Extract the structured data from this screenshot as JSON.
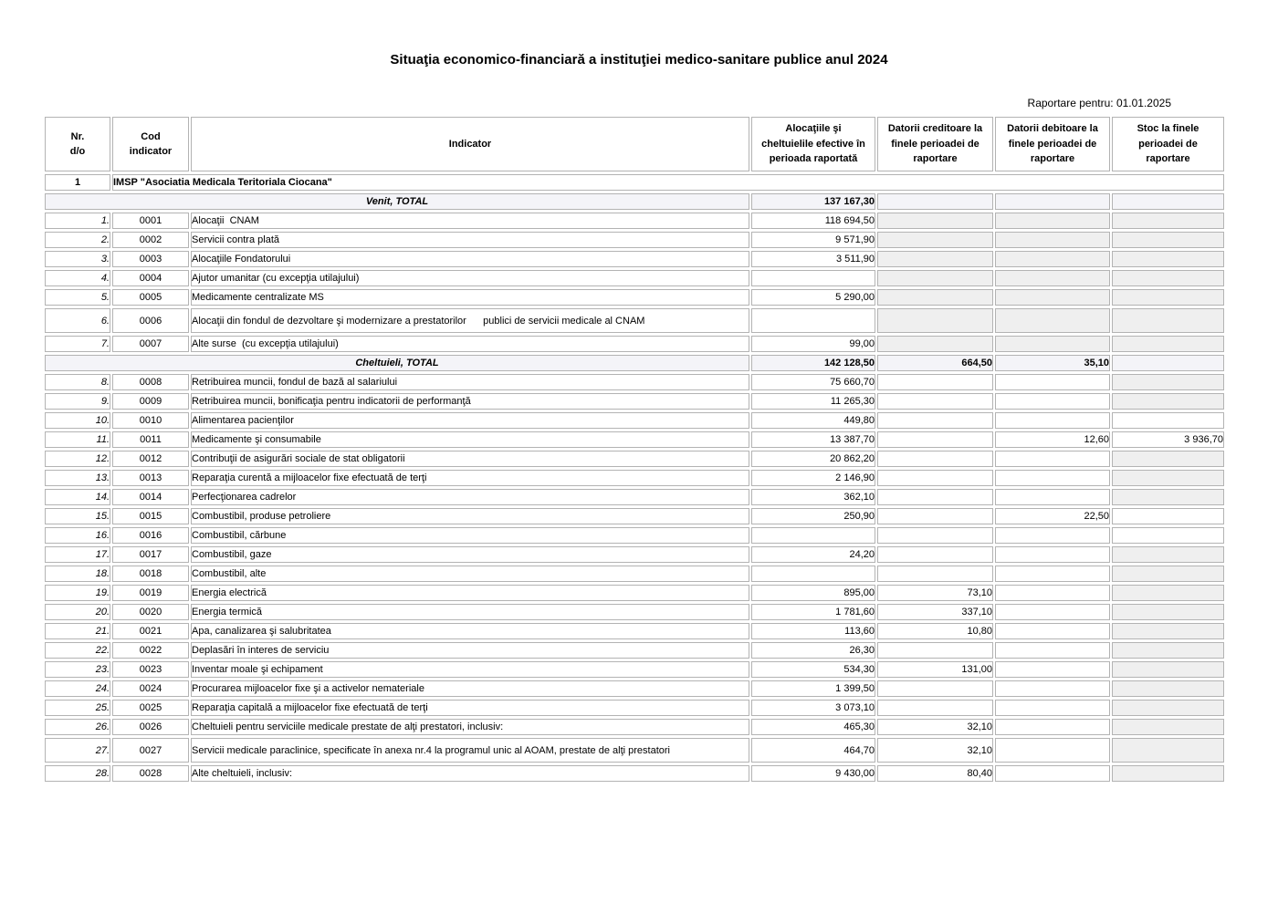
{
  "page": {
    "title": "Situaţia economico-financiară a instituţiei medico-sanitare publice anul 2024",
    "report_label": "Raportare pentru:",
    "report_date": "01.01.2025"
  },
  "colors": {
    "page_bg": "#ffffff",
    "text": "#000000",
    "grid_border": "#b3b3b3",
    "disabled_cell_bg": "#efefef",
    "total_row_bg": "#f4f4f8"
  },
  "table": {
    "columns": [
      {
        "key": "nr",
        "label": "Nr.\nd/o"
      },
      {
        "key": "code",
        "label": "Cod\nindicator"
      },
      {
        "key": "indicator",
        "label": "Indicator"
      },
      {
        "key": "alloc",
        "label": "Alocaţiile şi\ncheltuielile efective în\nperioada raportată"
      },
      {
        "key": "cred",
        "label": "Datorii creditoare la\nfinele perioadei de\nraportare"
      },
      {
        "key": "deb",
        "label": "Datorii debitoare la\nfinele perioadei de\nraportare"
      },
      {
        "key": "stoc",
        "label": "Stoc la finele\nperioadei de\nraportare"
      }
    ],
    "rows": [
      {
        "type": "section",
        "nr": "1",
        "label": "IMSP \"Asociatia Medicala Teritoriala Ciocana\""
      },
      {
        "type": "total",
        "label": "Venit, TOTAL",
        "alloc": "137 167,30",
        "cred": "",
        "deb": "",
        "stoc": ""
      },
      {
        "type": "item",
        "nr": "1.",
        "code": "0001",
        "indicator": "Alocaţii  CNAM",
        "alloc": "118 694,50",
        "cred": "",
        "deb": "",
        "stoc": "",
        "gray": [
          "cred",
          "deb",
          "stoc"
        ]
      },
      {
        "type": "item",
        "nr": "2.",
        "code": "0002",
        "indicator": "Servicii contra plată",
        "alloc": "9 571,90",
        "cred": "",
        "deb": "",
        "stoc": "",
        "gray": [
          "cred",
          "deb",
          "stoc"
        ]
      },
      {
        "type": "item",
        "nr": "3.",
        "code": "0003",
        "indicator": "Alocaţiile Fondatorului",
        "alloc": "3 511,90",
        "cred": "",
        "deb": "",
        "stoc": "",
        "gray": [
          "cred",
          "deb",
          "stoc"
        ]
      },
      {
        "type": "item",
        "nr": "4.",
        "code": "0004",
        "indicator": "Ajutor umanitar (cu excepţia utilajului)",
        "alloc": "",
        "cred": "",
        "deb": "",
        "stoc": "",
        "gray": [
          "cred",
          "deb",
          "stoc"
        ]
      },
      {
        "type": "item",
        "nr": "5.",
        "code": "0005",
        "indicator": "Medicamente centralizate MS",
        "alloc": "5 290,00",
        "cred": "",
        "deb": "",
        "stoc": "",
        "gray": [
          "cred",
          "deb",
          "stoc"
        ]
      },
      {
        "type": "item",
        "nr": "6.",
        "code": "0006",
        "indicator": "Alocaţii din fondul de dezvoltare şi modernizare a prestatorilor      publici de servicii medicale al CNAM",
        "alloc": "",
        "cred": "",
        "deb": "",
        "stoc": "",
        "gray": [
          "cred",
          "deb",
          "stoc"
        ],
        "tall": true
      },
      {
        "type": "item",
        "nr": "7.",
        "code": "0007",
        "indicator": "Alte surse  (cu excepţia utilajului)",
        "alloc": "99,00",
        "cred": "",
        "deb": "",
        "stoc": "",
        "gray": [
          "cred",
          "deb",
          "stoc"
        ]
      },
      {
        "type": "total",
        "label": "Cheltuieli, TOTAL",
        "alloc": "142 128,50",
        "cred": "664,50",
        "deb": "35,10",
        "stoc": ""
      },
      {
        "type": "item",
        "nr": "8.",
        "code": "0008",
        "indicator": "Retribuirea muncii, fondul de bază al salariului",
        "alloc": "75 660,70",
        "cred": "",
        "deb": "",
        "stoc": "",
        "gray": [
          "stoc"
        ]
      },
      {
        "type": "item",
        "nr": "9.",
        "code": "0009",
        "indicator": "Retribuirea muncii, bonificaţia pentru indicatorii de performanţă",
        "alloc": "11 265,30",
        "cred": "",
        "deb": "",
        "stoc": "",
        "gray": [
          "stoc"
        ]
      },
      {
        "type": "item",
        "nr": "10.",
        "code": "0010",
        "indicator": "Alimentarea pacienţilor",
        "alloc": "449,80",
        "cred": "",
        "deb": "",
        "stoc": "",
        "gray": []
      },
      {
        "type": "item",
        "nr": "11.",
        "code": "0011",
        "indicator": "Medicamente şi consumabile",
        "alloc": "13 387,70",
        "cred": "",
        "deb": "12,60",
        "stoc": "3 936,70",
        "gray": []
      },
      {
        "type": "item",
        "nr": "12.",
        "code": "0012",
        "indicator": "Contribuţii de asigurări sociale de stat obligatorii",
        "alloc": "20 862,20",
        "cred": "",
        "deb": "",
        "stoc": "",
        "gray": [
          "stoc"
        ]
      },
      {
        "type": "item",
        "nr": "13.",
        "code": "0013",
        "indicator": "Reparaţia curentă a mijloacelor fixe efectuată de terţi",
        "alloc": "2 146,90",
        "cred": "",
        "deb": "",
        "stoc": "",
        "gray": [
          "stoc"
        ]
      },
      {
        "type": "item",
        "nr": "14.",
        "code": "0014",
        "indicator": "Perfecţionarea cadrelor",
        "alloc": "362,10",
        "cred": "",
        "deb": "",
        "stoc": "",
        "gray": [
          "stoc"
        ]
      },
      {
        "type": "item",
        "nr": "15.",
        "code": "0015",
        "indicator": "Combustibil, produse petroliere",
        "alloc": "250,90",
        "cred": "",
        "deb": "22,50",
        "stoc": "",
        "gray": []
      },
      {
        "type": "item",
        "nr": "16.",
        "code": "0016",
        "indicator": "Combustibil, cărbune",
        "alloc": "",
        "cred": "",
        "deb": "",
        "stoc": "",
        "gray": []
      },
      {
        "type": "item",
        "nr": "17.",
        "code": "0017",
        "indicator": "Combustibil, gaze",
        "alloc": "24,20",
        "cred": "",
        "deb": "",
        "stoc": "",
        "gray": [
          "stoc"
        ]
      },
      {
        "type": "item",
        "nr": "18.",
        "code": "0018",
        "indicator": "Combustibil, alte",
        "alloc": "",
        "cred": "",
        "deb": "",
        "stoc": "",
        "gray": [
          "stoc"
        ]
      },
      {
        "type": "item",
        "nr": "19.",
        "code": "0019",
        "indicator": "Energia electrică",
        "alloc": "895,00",
        "cred": "73,10",
        "deb": "",
        "stoc": "",
        "gray": [
          "stoc"
        ]
      },
      {
        "type": "item",
        "nr": "20.",
        "code": "0020",
        "indicator": "Energia termică",
        "alloc": "1 781,60",
        "cred": "337,10",
        "deb": "",
        "stoc": "",
        "gray": [
          "stoc"
        ]
      },
      {
        "type": "item",
        "nr": "21.",
        "code": "0021",
        "indicator": "Apa, canalizarea şi salubritatea",
        "alloc": "113,60",
        "cred": "10,80",
        "deb": "",
        "stoc": "",
        "gray": [
          "stoc"
        ]
      },
      {
        "type": "item",
        "nr": "22.",
        "code": "0022",
        "indicator": "Deplasări în interes de serviciu",
        "alloc": "26,30",
        "cred": "",
        "deb": "",
        "stoc": "",
        "gray": [
          "stoc"
        ]
      },
      {
        "type": "item",
        "nr": "23.",
        "code": "0023",
        "indicator": "Inventar moale şi echipament",
        "alloc": "534,30",
        "cred": "131,00",
        "deb": "",
        "stoc": "",
        "gray": [
          "stoc"
        ]
      },
      {
        "type": "item",
        "nr": "24.",
        "code": "0024",
        "indicator": "Procurarea mijloacelor fixe şi a activelor nemateriale",
        "alloc": "1 399,50",
        "cred": "",
        "deb": "",
        "stoc": "",
        "gray": [
          "stoc"
        ]
      },
      {
        "type": "item",
        "nr": "25.",
        "code": "0025",
        "indicator": "Reparaţia capitală a mijloacelor fixe efectuată de terţi",
        "alloc": "3 073,10",
        "cred": "",
        "deb": "",
        "stoc": "",
        "gray": [
          "stoc"
        ]
      },
      {
        "type": "item",
        "nr": "26.",
        "code": "0026",
        "indicator": "Cheltuieli pentru serviciile medicale prestate de alţi prestatori, inclusiv:",
        "alloc": "465,30",
        "cred": "32,10",
        "deb": "",
        "stoc": "",
        "gray": [
          "stoc"
        ]
      },
      {
        "type": "item",
        "nr": "27.",
        "code": "0027",
        "indicator": "Servicii medicale paraclinice, specificate în anexa nr.4 la programul unic al AOAM, prestate de alţi prestatori",
        "alloc": "464,70",
        "cred": "32,10",
        "deb": "",
        "stoc": "",
        "gray": [
          "stoc"
        ],
        "tall": true
      },
      {
        "type": "item",
        "nr": "28.",
        "code": "0028",
        "indicator": "Alte cheltuieli, inclusiv:",
        "alloc": "9 430,00",
        "cred": "80,40",
        "deb": "",
        "stoc": "",
        "gray": [
          "stoc"
        ]
      }
    ]
  }
}
